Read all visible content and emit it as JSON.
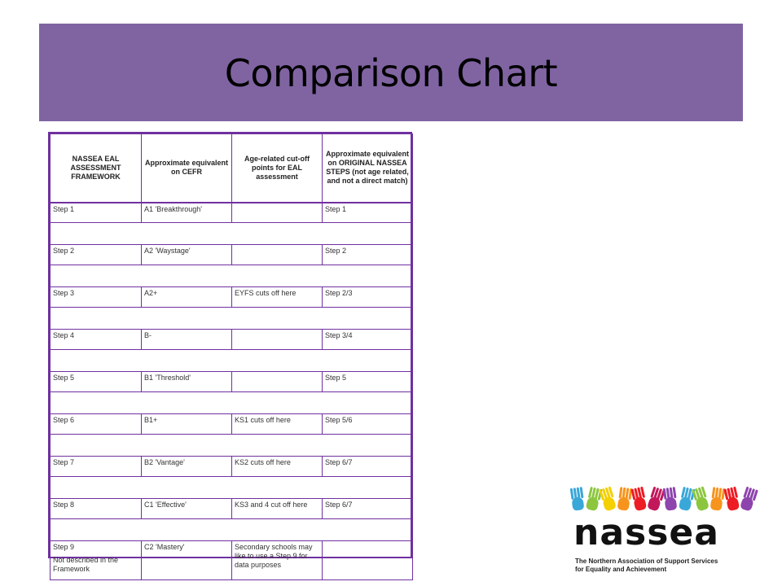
{
  "slide": {
    "title": "Comparison Chart"
  },
  "table": {
    "headers": [
      "NASSEA EAL ASSESSMENT FRAMEWORK",
      "Approximate equivalent on CEFR",
      "Age-related cut-off points for EAL assessment",
      "Approximate equivalent on ORIGINAL NASSEA STEPS (not age related, and not a direct match)"
    ],
    "rows": [
      {
        "framework": "Step 1",
        "cefr": "A1 'Breakthrough'",
        "cutoff": "",
        "original": "Step 1"
      },
      {
        "framework": "Step 2",
        "cefr": "A2 'Waystage'",
        "cutoff": "",
        "original": "Step 2"
      },
      {
        "framework": "Step 3",
        "cefr": "A2+",
        "cutoff": "EYFS cuts off here",
        "original": "Step 2/3"
      },
      {
        "framework": "Step 4",
        "cefr": "B-",
        "cutoff": "",
        "original": "Step 3/4"
      },
      {
        "framework": "Step 5",
        "cefr": "B1 'Threshold'",
        "cutoff": "",
        "original": "Step 5"
      },
      {
        "framework": "Step 6",
        "cefr": "B1+",
        "cutoff": "KS1 cuts off here",
        "original": "Step 5/6"
      },
      {
        "framework": "Step 7",
        "cefr": "B2 'Vantage'",
        "cutoff": "KS2 cuts off here",
        "original": "Step 6/7"
      },
      {
        "framework": "Step 8",
        "cefr": "C1 'Effective'",
        "cutoff": "KS3 and 4 cut off here",
        "original": "Step 6/7"
      },
      {
        "framework": "Step 9",
        "framework_note": "Not described in the Framework",
        "cefr": "C2 'Mastery'",
        "cutoff": "Secondary schools may like to use a Step 9 for data purposes",
        "original": ""
      }
    ]
  },
  "logo": {
    "wordmark": "nassea",
    "tagline_line1": "The Northern Association of Support Services",
    "tagline_line2": "for Equality and Achievement",
    "hand_colors": [
      "#3aa7d9",
      "#8cc63f",
      "#f4d000",
      "#f7941d",
      "#ed1c24",
      "#c2185b",
      "#8e44ad",
      "#3aa7d9",
      "#8cc63f",
      "#f7941d",
      "#ed1c24",
      "#8e44ad"
    ]
  },
  "colors": {
    "title_band": "#8064a2",
    "table_border": "#7030a0"
  }
}
